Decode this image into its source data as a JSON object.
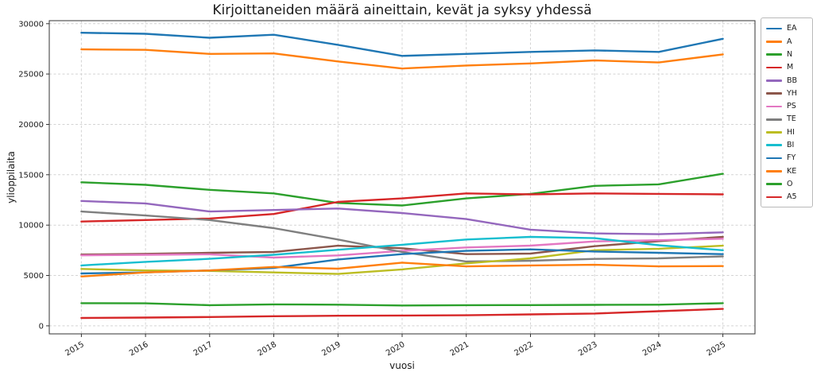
{
  "chart_data": {
    "type": "line",
    "title": "Kirjoittaneiden määrä aineittain, kevät ja syksy yhdessä",
    "xlabel": "vuosi",
    "ylabel": "ylioppilaita",
    "x": [
      2015,
      2016,
      2017,
      2018,
      2019,
      2020,
      2021,
      2022,
      2023,
      2024,
      2025
    ],
    "yticks": [
      0,
      5000,
      10000,
      15000,
      20000,
      25000,
      30000
    ],
    "ylim": [
      0,
      30000
    ],
    "grid": true,
    "legend_position": "outside-right",
    "series": [
      {
        "name": "EA",
        "color": "#1f77b4",
        "values": [
          29100,
          29000,
          28600,
          28900,
          27900,
          26800,
          27000,
          27200,
          27350,
          27200,
          28500
        ]
      },
      {
        "name": "A",
        "color": "#ff7f0e",
        "values": [
          27450,
          27400,
          27000,
          27050,
          26250,
          25550,
          25850,
          26050,
          26350,
          26150,
          26950
        ]
      },
      {
        "name": "N",
        "color": "#2ca02c",
        "values": [
          14250,
          14000,
          13500,
          13150,
          12200,
          11950,
          12650,
          13100,
          13900,
          14050,
          15100
        ]
      },
      {
        "name": "M",
        "color": "#d62728",
        "values": [
          10350,
          10500,
          10650,
          11100,
          12300,
          12650,
          13150,
          13050,
          13150,
          13100,
          13050
        ]
      },
      {
        "name": "BB",
        "color": "#9467bd",
        "values": [
          12400,
          12150,
          11350,
          11500,
          11650,
          11200,
          10600,
          9550,
          9180,
          9100,
          9280
        ]
      },
      {
        "name": "YH",
        "color": "#8c564b",
        "values": [
          7080,
          7150,
          7250,
          7330,
          7950,
          7700,
          7120,
          7170,
          7910,
          8400,
          8830
        ]
      },
      {
        "name": "PS",
        "color": "#e377c2",
        "values": [
          7000,
          7050,
          7100,
          6780,
          6990,
          7440,
          7780,
          7960,
          8380,
          8500,
          8650
        ]
      },
      {
        "name": "TE",
        "color": "#7f7f7f",
        "values": [
          11350,
          10950,
          10500,
          9700,
          8570,
          7330,
          6380,
          6460,
          6640,
          6700,
          6900
        ]
      },
      {
        "name": "HI",
        "color": "#bcbd22",
        "values": [
          5650,
          5500,
          5450,
          5300,
          5150,
          5600,
          6200,
          6700,
          7500,
          7650,
          7950
        ]
      },
      {
        "name": "BI",
        "color": "#17becf",
        "values": [
          6000,
          6350,
          6650,
          7050,
          7550,
          8050,
          8570,
          8830,
          8700,
          8000,
          7500
        ]
      },
      {
        "name": "FY",
        "color": "#1f77b4",
        "values": [
          5200,
          5300,
          5500,
          5750,
          6590,
          7120,
          7440,
          7590,
          7380,
          7250,
          7120
        ]
      },
      {
        "name": "KE",
        "color": "#ff7f0e",
        "values": [
          4900,
          5300,
          5500,
          5850,
          5670,
          6270,
          5900,
          6000,
          6060,
          5900,
          5930
        ]
      },
      {
        "name": "O",
        "color": "#2ca02c",
        "values": [
          2250,
          2230,
          2050,
          2130,
          2100,
          2020,
          2050,
          2060,
          2080,
          2100,
          2250
        ]
      },
      {
        "name": "A5",
        "color": "#d62728",
        "values": [
          780,
          820,
          870,
          950,
          1000,
          1020,
          1050,
          1130,
          1220,
          1450,
          1680
        ]
      }
    ]
  }
}
